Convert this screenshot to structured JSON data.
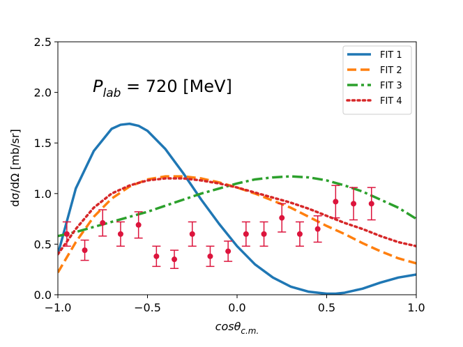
{
  "chart_data": {
    "type": "line",
    "title": "",
    "annotation": {
      "symbol": "P",
      "subscript": "lab",
      "text": " = 720 [MeV]"
    },
    "xlabel": {
      "main": "cosθ",
      "subscript": "c.m."
    },
    "ylabel": "dσ/dΩ [mb/sr]",
    "xlim": [
      -1.0,
      1.0
    ],
    "ylim": [
      0.0,
      2.5
    ],
    "xticks": [
      -1.0,
      -0.5,
      0.0,
      0.5,
      1.0
    ],
    "xtick_labels": [
      "−1.0",
      "−0.5",
      "0.0",
      "0.5",
      "1.0"
    ],
    "yticks": [
      0.0,
      0.5,
      1.0,
      1.5,
      2.0,
      2.5
    ],
    "ytick_labels": [
      "0.0",
      "0.5",
      "1.0",
      "1.5",
      "2.0",
      "2.5"
    ],
    "grid": false,
    "legend_position": "top-right",
    "series": [
      {
        "name": "FIT 1",
        "color": "#1f77b4",
        "style": "solid",
        "x": [
          -1.0,
          -0.9,
          -0.8,
          -0.7,
          -0.65,
          -0.6,
          -0.55,
          -0.5,
          -0.4,
          -0.3,
          -0.2,
          -0.1,
          0.0,
          0.1,
          0.2,
          0.3,
          0.4,
          0.5,
          0.55,
          0.6,
          0.7,
          0.8,
          0.9,
          1.0
        ],
        "y": [
          0.4,
          1.05,
          1.42,
          1.64,
          1.68,
          1.69,
          1.67,
          1.62,
          1.44,
          1.2,
          0.94,
          0.7,
          0.48,
          0.3,
          0.17,
          0.08,
          0.03,
          0.01,
          0.01,
          0.02,
          0.06,
          0.12,
          0.17,
          0.2
        ]
      },
      {
        "name": "FIT 2",
        "color": "#ff7f0e",
        "style": "dashed",
        "x": [
          -1.0,
          -0.9,
          -0.8,
          -0.7,
          -0.6,
          -0.5,
          -0.4,
          -0.3,
          -0.2,
          -0.1,
          0.0,
          0.1,
          0.2,
          0.3,
          0.4,
          0.5,
          0.6,
          0.7,
          0.8,
          0.9,
          1.0
        ],
        "y": [
          0.22,
          0.52,
          0.77,
          0.95,
          1.07,
          1.14,
          1.17,
          1.17,
          1.15,
          1.11,
          1.06,
          1.0,
          0.93,
          0.86,
          0.77,
          0.68,
          0.6,
          0.51,
          0.43,
          0.36,
          0.31
        ]
      },
      {
        "name": "FIT 3",
        "color": "#2ca02c",
        "style": "dashdot",
        "x": [
          -1.0,
          -0.9,
          -0.8,
          -0.7,
          -0.6,
          -0.5,
          -0.4,
          -0.3,
          -0.2,
          -0.1,
          0.0,
          0.1,
          0.2,
          0.3,
          0.4,
          0.5,
          0.6,
          0.7,
          0.8,
          0.9,
          1.0
        ],
        "y": [
          0.58,
          0.62,
          0.67,
          0.72,
          0.77,
          0.82,
          0.88,
          0.94,
          1.0,
          1.05,
          1.1,
          1.14,
          1.16,
          1.17,
          1.16,
          1.13,
          1.08,
          1.02,
          0.94,
          0.86,
          0.75
        ]
      },
      {
        "name": "FIT 4",
        "color": "#d62728",
        "style": "dotted",
        "x": [
          -1.0,
          -0.9,
          -0.8,
          -0.7,
          -0.6,
          -0.5,
          -0.4,
          -0.3,
          -0.2,
          -0.1,
          0.0,
          0.1,
          0.2,
          0.3,
          0.4,
          0.5,
          0.6,
          0.7,
          0.8,
          0.9,
          1.0
        ],
        "y": [
          0.4,
          0.65,
          0.86,
          1.0,
          1.08,
          1.13,
          1.15,
          1.15,
          1.13,
          1.1,
          1.06,
          1.01,
          0.96,
          0.91,
          0.85,
          0.78,
          0.71,
          0.65,
          0.58,
          0.52,
          0.48
        ]
      }
    ],
    "experimental_data": {
      "color": "#dc143c",
      "points": [
        {
          "x": -0.95,
          "y": 0.6,
          "err": 0.12
        },
        {
          "x": -0.85,
          "y": 0.44,
          "err": 0.1
        },
        {
          "x": -0.75,
          "y": 0.71,
          "err": 0.13
        },
        {
          "x": -0.65,
          "y": 0.6,
          "err": 0.12
        },
        {
          "x": -0.55,
          "y": 0.69,
          "err": 0.13
        },
        {
          "x": -0.45,
          "y": 0.38,
          "err": 0.1
        },
        {
          "x": -0.35,
          "y": 0.35,
          "err": 0.09
        },
        {
          "x": -0.25,
          "y": 0.6,
          "err": 0.12
        },
        {
          "x": -0.15,
          "y": 0.38,
          "err": 0.1
        },
        {
          "x": -0.05,
          "y": 0.43,
          "err": 0.1
        },
        {
          "x": 0.05,
          "y": 0.6,
          "err": 0.12
        },
        {
          "x": 0.15,
          "y": 0.6,
          "err": 0.12
        },
        {
          "x": 0.25,
          "y": 0.76,
          "err": 0.14
        },
        {
          "x": 0.35,
          "y": 0.6,
          "err": 0.12
        },
        {
          "x": 0.45,
          "y": 0.65,
          "err": 0.13
        },
        {
          "x": 0.55,
          "y": 0.92,
          "err": 0.16
        },
        {
          "x": 0.65,
          "y": 0.9,
          "err": 0.16
        },
        {
          "x": 0.75,
          "y": 0.9,
          "err": 0.16
        }
      ]
    }
  }
}
